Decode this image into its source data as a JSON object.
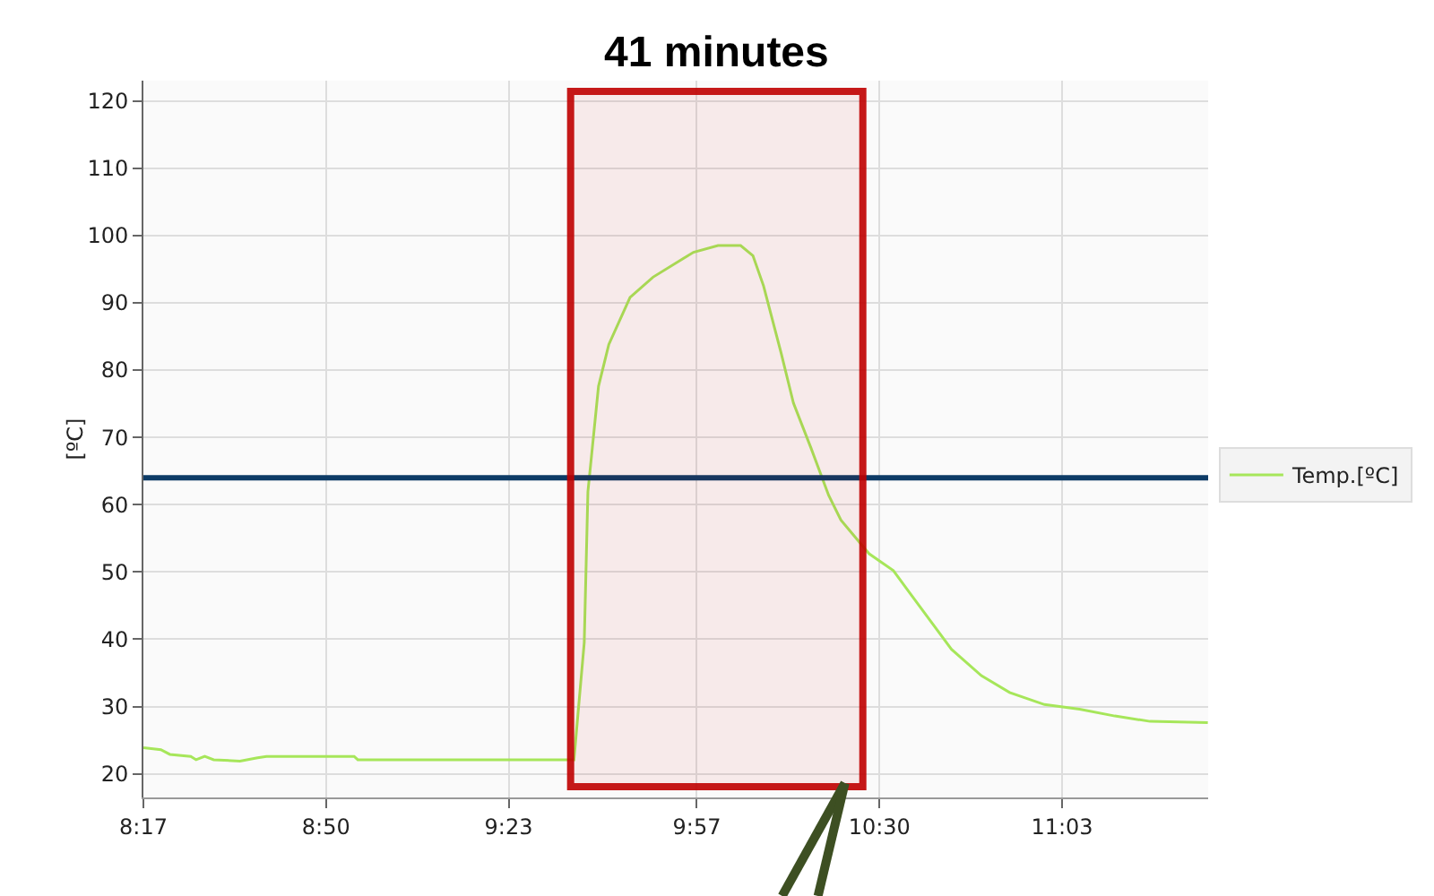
{
  "chart_data": {
    "type": "line",
    "ylabel": "[ºC]",
    "x": [
      8.2833,
      8.336,
      8.363,
      8.426,
      8.442,
      8.468,
      8.495,
      8.574,
      8.627,
      8.654,
      8.918,
      8.929,
      9.553,
      9.58,
      9.611,
      9.622,
      9.654,
      9.685,
      9.749,
      9.818,
      9.94,
      10.014,
      10.082,
      10.119,
      10.151,
      10.204,
      10.241,
      10.294,
      10.347,
      10.384,
      10.469,
      10.542,
      10.627,
      10.717,
      10.807,
      10.892,
      10.997,
      11.103,
      11.209,
      11.315,
      11.489
    ],
    "series": [
      {
        "name": "Temp.[ºC]",
        "color": "#a6e65a",
        "values": [
          23.9,
          23.6,
          22.9,
          22.6,
          22.1,
          22.6,
          22.1,
          21.9,
          22.4,
          22.6,
          22.6,
          22.1,
          22.1,
          22.1,
          39.5,
          61.9,
          77.6,
          83.8,
          90.8,
          93.8,
          97.5,
          98.5,
          98.5,
          97.0,
          92.5,
          82.5,
          75.1,
          68.4,
          61.4,
          57.7,
          52.7,
          50.2,
          44.5,
          38.5,
          34.6,
          32.1,
          30.3,
          29.6,
          28.6,
          27.8,
          27.6
        ]
      }
    ],
    "xlim": [
      8.2833,
      11.49
    ],
    "xticks": [
      {
        "value": 8.2833,
        "label": "8:17"
      },
      {
        "value": 8.8333,
        "label": "8:50"
      },
      {
        "value": 9.3833,
        "label": "9:23"
      },
      {
        "value": 9.95,
        "label": "9:57"
      },
      {
        "value": 10.5,
        "label": "10:30"
      },
      {
        "value": 11.05,
        "label": "11:03"
      }
    ],
    "ylim": [
      16.5,
      123
    ],
    "yticks": [
      20,
      30,
      40,
      50,
      60,
      70,
      80,
      90,
      100,
      110,
      120
    ],
    "ref_lines": [
      {
        "axis": "y",
        "value": 64,
        "color": "#0d3b66"
      }
    ],
    "bands": [
      {
        "axis": "x",
        "from": 9.57,
        "to": 10.45,
        "label": "41 minutes",
        "color": "#c00000"
      }
    ],
    "grid": true,
    "legend": "right",
    "marker": "none",
    "line_style": "solid"
  }
}
